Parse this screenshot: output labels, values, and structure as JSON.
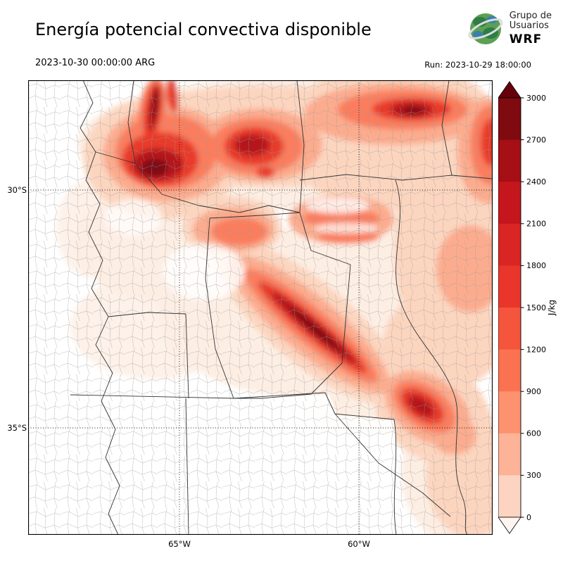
{
  "header": {
    "title": "Energía potencial convectiva disponible",
    "valid_time": "2023-10-30 00:00:00 ARG",
    "run_label": "Run: 2023-10-29 18:00:00",
    "logo": {
      "org_line1": "Grupo de",
      "org_line2": "Usuarios",
      "org_acronym": "WRF"
    }
  },
  "map": {
    "lat_labels": [
      "30°S",
      "35°S"
    ],
    "lon_labels": [
      "65°W",
      "60°W"
    ]
  },
  "colorbar": {
    "unit": "J/kg",
    "tick_labels": [
      "3000",
      "2700",
      "2400",
      "2100",
      "1800",
      "1500",
      "1200",
      "900",
      "600",
      "300",
      "0"
    ],
    "segment_colors": [
      "#7f0a10",
      "#a50f15",
      "#c4161c",
      "#d92523",
      "#ea362a",
      "#f5553d",
      "#fb7252",
      "#fc926e",
      "#fcb398",
      "#fdd4c2"
    ],
    "arrow_top_color": "#67000d",
    "arrow_bottom_color": "#fff5f0"
  }
}
